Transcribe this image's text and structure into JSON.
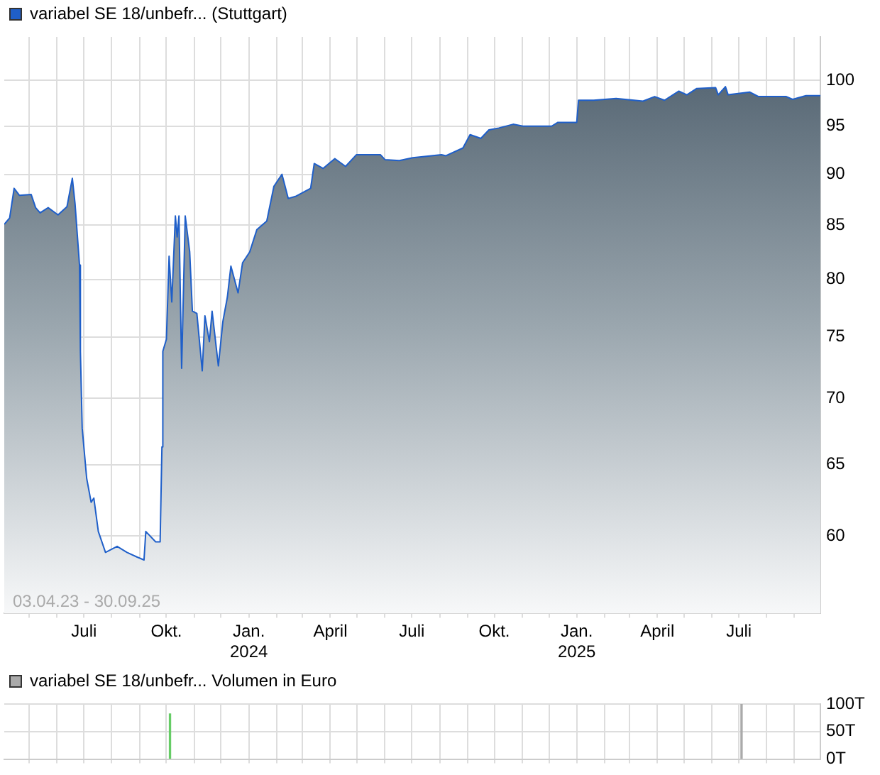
{
  "chart_data": [
    {
      "type": "area",
      "annotations": [
        "03.04.23 - 30.09.25"
      ],
      "legend": "top left",
      "grid": true,
      "log": true,
      "x": [
        "2023-04-03",
        "2023-04-09",
        "2023-04-14",
        "2023-04-20",
        "2023-05-03",
        "2023-05-08",
        "2023-05-13",
        "2023-05-22",
        "2023-06-02",
        "2023-06-12",
        "2023-06-18",
        "2023-06-21",
        "2023-06-26",
        "2023-06-27",
        "2023-06-29",
        "2023-07-04",
        "2023-07-09",
        "2023-07-12",
        "2023-07-17",
        "2023-07-25",
        "2023-08-07",
        "2023-08-18",
        "2023-08-29",
        "2023-09-06",
        "2023-09-08",
        "2023-09-19",
        "2023-09-24",
        "2023-09-26",
        "2023-09-27",
        "2023-10-01",
        "2023-10-04",
        "2023-10-07",
        "2023-10-11",
        "2023-10-13",
        "2023-10-15",
        "2023-10-18",
        "2023-10-22",
        "2023-10-27",
        "2023-10-30",
        "2023-11-04",
        "2023-11-10",
        "2023-11-13",
        "2023-11-18",
        "2023-11-21",
        "2023-11-28",
        "2023-12-03",
        "2023-12-08",
        "2023-12-12",
        "2023-12-20",
        "2023-12-25",
        "2024-01-02",
        "2024-01-10",
        "2024-01-21",
        "2024-01-29",
        "2024-02-07",
        "2024-02-14",
        "2024-02-22",
        "2024-03-10",
        "2024-03-14",
        "2024-03-24",
        "2024-04-06",
        "2024-04-18",
        "2024-04-30",
        "2024-05-27",
        "2024-06-01",
        "2024-06-17",
        "2024-07-02",
        "2024-08-03",
        "2024-08-08",
        "2024-08-27",
        "2024-09-04",
        "2024-09-16",
        "2024-09-25",
        "2024-10-06",
        "2024-10-22",
        "2024-11-02",
        "2024-12-04",
        "2024-12-11",
        "2025-01-01",
        "2025-01-03",
        "2025-01-20",
        "2025-02-14",
        "2025-03-16",
        "2025-03-29",
        "2025-04-09",
        "2025-04-25",
        "2025-05-04",
        "2025-05-15",
        "2025-06-05",
        "2025-06-08",
        "2025-06-16",
        "2025-06-19",
        "2025-07-13",
        "2025-07-23",
        "2025-08-23",
        "2025-08-30",
        "2025-09-14",
        "2025-09-30"
      ],
      "series": [
        {
          "name": "variabel SE 18/unbefr... (Stuttgart)",
          "color": "#1f5fc9",
          "values": [
            85.1,
            85.7,
            88.6,
            87.9,
            88.0,
            86.7,
            86.2,
            86.7,
            86.0,
            86.8,
            89.6,
            87.1,
            81.3,
            73.8,
            67.7,
            64.0,
            62.3,
            62.6,
            60.3,
            58.9,
            59.3,
            58.9,
            58.6,
            58.4,
            60.3,
            59.6,
            59.6,
            66.3,
            73.8,
            74.8,
            82.1,
            78.0,
            85.9,
            83.9,
            85.9,
            72.4,
            85.9,
            82.5,
            77.2,
            77.0,
            72.2,
            76.8,
            74.6,
            77.2,
            72.6,
            76.3,
            78.4,
            81.2,
            78.8,
            81.5,
            82.5,
            84.6,
            85.4,
            88.8,
            90.0,
            87.6,
            87.8,
            88.6,
            91.1,
            90.6,
            91.6,
            90.8,
            92.0,
            92.0,
            91.5,
            91.4,
            91.7,
            92.0,
            91.9,
            92.7,
            94.1,
            93.7,
            94.6,
            94.8,
            95.2,
            95.0,
            95.0,
            95.4,
            95.4,
            97.8,
            97.8,
            98.0,
            97.7,
            98.2,
            97.8,
            98.8,
            98.4,
            99.1,
            99.2,
            98.4,
            99.3,
            98.4,
            98.7,
            98.2,
            98.2,
            97.9,
            98.3,
            98.3
          ]
        }
      ],
      "xlim": [
        "2023-04-03",
        "2025-09-30"
      ],
      "xticks": [
        {
          "value": "2023-05-01",
          "label": null
        },
        {
          "value": "2023-06-01",
          "label": null
        },
        {
          "value": "2023-07-01",
          "label": "Juli"
        },
        {
          "value": "2023-08-01",
          "label": null
        },
        {
          "value": "2023-09-01",
          "label": null
        },
        {
          "value": "2023-10-01",
          "label": "Okt."
        },
        {
          "value": "2023-11-01",
          "label": null
        },
        {
          "value": "2023-12-01",
          "label": null
        },
        {
          "value": "2024-01-01",
          "label": "Jan.\n2024"
        },
        {
          "value": "2024-02-01",
          "label": null
        },
        {
          "value": "2024-03-01",
          "label": null
        },
        {
          "value": "2024-04-01",
          "label": "April"
        },
        {
          "value": "2024-05-01",
          "label": null
        },
        {
          "value": "2024-06-01",
          "label": null
        },
        {
          "value": "2024-07-01",
          "label": "Juli"
        },
        {
          "value": "2024-08-01",
          "label": null
        },
        {
          "value": "2024-09-01",
          "label": null
        },
        {
          "value": "2024-10-01",
          "label": "Okt."
        },
        {
          "value": "2024-11-01",
          "label": null
        },
        {
          "value": "2024-12-01",
          "label": null
        },
        {
          "value": "2025-01-01",
          "label": "Jan.\n2025"
        },
        {
          "value": "2025-02-01",
          "label": null
        },
        {
          "value": "2025-03-01",
          "label": null
        },
        {
          "value": "2025-04-01",
          "label": "April"
        },
        {
          "value": "2025-05-01",
          "label": null
        },
        {
          "value": "2025-06-01",
          "label": null
        },
        {
          "value": "2025-07-01",
          "label": "Juli"
        },
        {
          "value": "2025-08-01",
          "label": null
        },
        {
          "value": "2025-09-01",
          "label": null
        }
      ],
      "ylim": [
        55,
        105
      ],
      "yticks": [
        60,
        65,
        70,
        75,
        80,
        85,
        90,
        95,
        100
      ]
    },
    {
      "type": "bar",
      "legend": "top left",
      "grid": true,
      "tick_labels": "y",
      "x": [
        "2023-10-05",
        "2025-07-04"
      ],
      "series": [
        {
          "name": "variabel SE 18/unbefr... Volumen in Euro",
          "color": "#aaaaaa",
          "colors": [
            "#66cc66",
            "#aaaaaa"
          ],
          "values": [
            82,
            100
          ]
        }
      ],
      "xlim": [
        "2023-04-03",
        "2025-09-30"
      ],
      "xticks": [
        {
          "value": "2023-05-01",
          "label": null
        },
        {
          "value": "2023-06-01",
          "label": null
        },
        {
          "value": "2023-07-01",
          "label": null
        },
        {
          "value": "2023-08-01",
          "label": null
        },
        {
          "value": "2023-09-01",
          "label": null
        },
        {
          "value": "2023-10-01",
          "label": null
        },
        {
          "value": "2023-11-01",
          "label": null
        },
        {
          "value": "2023-12-01",
          "label": null
        },
        {
          "value": "2024-01-01",
          "label": null
        },
        {
          "value": "2024-02-01",
          "label": null
        },
        {
          "value": "2024-03-01",
          "label": null
        },
        {
          "value": "2024-04-01",
          "label": null
        },
        {
          "value": "2024-05-01",
          "label": null
        },
        {
          "value": "2024-06-01",
          "label": null
        },
        {
          "value": "2024-07-01",
          "label": null
        },
        {
          "value": "2024-08-01",
          "label": null
        },
        {
          "value": "2024-09-01",
          "label": null
        },
        {
          "value": "2024-10-01",
          "label": null
        },
        {
          "value": "2024-11-01",
          "label": null
        },
        {
          "value": "2024-12-01",
          "label": null
        },
        {
          "value": "2025-01-01",
          "label": null
        },
        {
          "value": "2025-02-01",
          "label": null
        },
        {
          "value": "2025-03-01",
          "label": null
        },
        {
          "value": "2025-04-01",
          "label": null
        },
        {
          "value": "2025-05-01",
          "label": null
        },
        {
          "value": "2025-06-01",
          "label": null
        },
        {
          "value": "2025-07-01",
          "label": null
        },
        {
          "value": "2025-08-01",
          "label": null
        },
        {
          "value": "2025-09-01",
          "label": null
        }
      ],
      "ylim": [
        0,
        100
      ],
      "yticks": [
        {
          "value": 0,
          "label": "0T"
        },
        {
          "value": 50,
          "label": "50T"
        },
        {
          "value": 100,
          "label": "100T"
        }
      ]
    }
  ]
}
